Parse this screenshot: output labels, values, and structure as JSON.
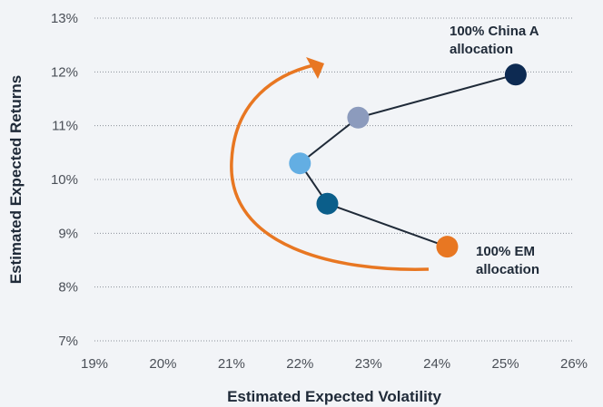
{
  "chart_data": {
    "type": "scatter",
    "title": "",
    "xlabel": "Estimated Expected Volatility",
    "ylabel": "Estimated Expected Returns",
    "xlim": [
      19,
      26
    ],
    "ylim": [
      7,
      13
    ],
    "x_ticks": [
      "19%",
      "20%",
      "21%",
      "22%",
      "23%",
      "24%",
      "25%",
      "26%"
    ],
    "y_ticks": [
      "7%",
      "8%",
      "9%",
      "10%",
      "11%",
      "12%",
      "13%"
    ],
    "grid": "horizontal",
    "points": [
      {
        "x": 24.15,
        "y": 8.75,
        "color": "#e87722"
      },
      {
        "x": 22.4,
        "y": 9.55,
        "color": "#0b5e8a"
      },
      {
        "x": 22.0,
        "y": 10.3,
        "color": "#63aee3"
      },
      {
        "x": 22.85,
        "y": 11.15,
        "color": "#8c9bbd"
      },
      {
        "x": 25.15,
        "y": 11.95,
        "color": "#0d2a52"
      }
    ],
    "annotations": {
      "china_line1": "100% China A",
      "china_line2": "allocation",
      "em_line1": "100% EM",
      "em_line2": "allocation"
    },
    "arrow_color": "#e87722",
    "line_color": "#1f2a38"
  }
}
